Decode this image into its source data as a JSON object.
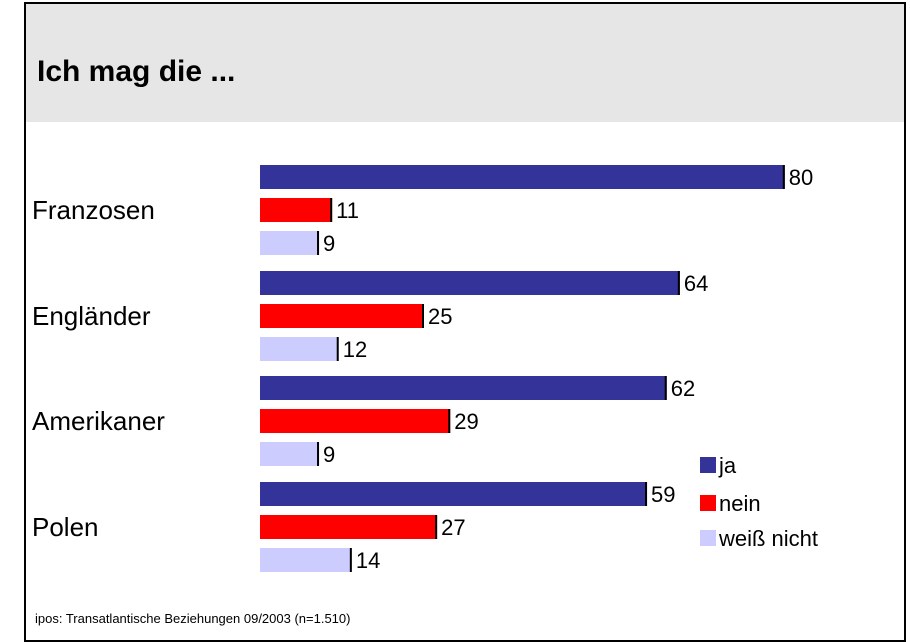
{
  "title": "Ich mag die ...",
  "source": "ipos: Transatlantische Beziehungen 09/2003  (n=1.510)",
  "chart_data": {
    "type": "bar",
    "orientation": "horizontal",
    "categories": [
      "Franzosen",
      "Engländer",
      "Amerikaner",
      "Polen"
    ],
    "series": [
      {
        "name": "ja",
        "values": [
          80,
          64,
          62,
          59
        ],
        "color": "#333399"
      },
      {
        "name": "nein",
        "values": [
          11,
          25,
          29,
          27
        ],
        "color": "#ff0000"
      },
      {
        "name": "weiß nicht",
        "values": [
          9,
          12,
          9,
          14
        ],
        "color": "#ccccff"
      }
    ],
    "data_labels": true,
    "legend_position": "right",
    "grid": false
  }
}
